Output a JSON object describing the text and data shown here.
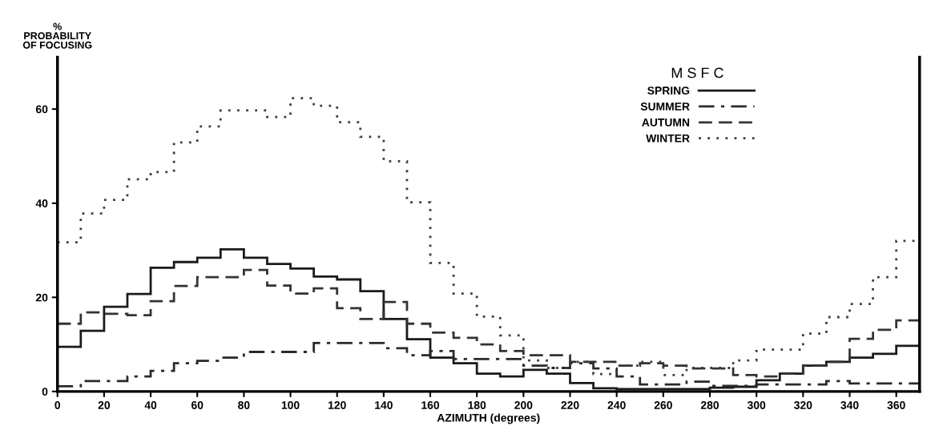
{
  "chart_data": {
    "type": "histogram",
    "xlabel": "AZIMUTH (degrees)",
    "ylabel": "%\nPROBABILITY\nOF FOCUSING",
    "legend_title": "M S F C",
    "legend": "top right",
    "grid": false,
    "bins": [
      0,
      10,
      20,
      30,
      40,
      50,
      60,
      70,
      80,
      90,
      100,
      110,
      120,
      130,
      140,
      150,
      160,
      170,
      180,
      190,
      200,
      210,
      220,
      230,
      240,
      250,
      260,
      270,
      280,
      290,
      300,
      310,
      320,
      330,
      340,
      350,
      360,
      370
    ],
    "xlim": [
      0,
      370
    ],
    "xticks": [
      0,
      20,
      40,
      60,
      80,
      100,
      120,
      140,
      160,
      180,
      200,
      220,
      240,
      260,
      280,
      300,
      320,
      340,
      360
    ],
    "ylim": [
      0,
      71
    ],
    "yticks": [
      0,
      20,
      40,
      60
    ],
    "series": [
      {
        "name": "SPRING",
        "color": "#1a1a1a",
        "line_style": "solid",
        "values": [
          9.5,
          12.9,
          18.0,
          20.7,
          26.3,
          27.5,
          28.4,
          30.2,
          28.4,
          27.1,
          26.1,
          24.4,
          23.8,
          21.3,
          15.4,
          11.1,
          7.2,
          6.0,
          3.8,
          3.2,
          4.6,
          3.8,
          1.8,
          0.7,
          0.5,
          0.5,
          0.5,
          0.5,
          0.8,
          1.0,
          2.4,
          3.8,
          5.5,
          6.3,
          7.2,
          8.0,
          9.7
        ]
      },
      {
        "name": "SUMMER",
        "color": "#2a2a2a",
        "line_style": "dashdot",
        "values": [
          1.1,
          2.2,
          2.2,
          3.2,
          4.4,
          6.0,
          6.5,
          7.2,
          8.4,
          8.4,
          8.4,
          10.3,
          10.3,
          10.3,
          9.2,
          7.7,
          8.6,
          6.9,
          6.9,
          6.9,
          5.5,
          5.0,
          6.0,
          4.9,
          3.2,
          1.5,
          1.5,
          2.1,
          1.2,
          1.2,
          1.5,
          1.5,
          1.5,
          2.2,
          1.7,
          1.7,
          1.7
        ]
      },
      {
        "name": "AUTUMN",
        "color": "#333333",
        "line_style": "dashed",
        "values": [
          14.4,
          16.8,
          16.5,
          16.2,
          19.2,
          22.4,
          24.3,
          24.3,
          25.8,
          22.5,
          20.8,
          21.9,
          17.7,
          15.4,
          19.0,
          14.4,
          12.5,
          11.4,
          10.0,
          8.6,
          7.7,
          7.7,
          6.3,
          6.3,
          5.5,
          6.0,
          5.5,
          4.9,
          4.9,
          3.5,
          3.2,
          3.8,
          5.5,
          6.3,
          11.2,
          13.1,
          15.1
        ]
      },
      {
        "name": "WINTER",
        "color": "#3c3c3c",
        "line_style": "dotted",
        "values": [
          31.7,
          37.8,
          40.7,
          45.1,
          46.6,
          52.9,
          56.3,
          59.7,
          59.7,
          58.3,
          62.3,
          60.7,
          57.2,
          54.1,
          48.9,
          40.2,
          27.3,
          20.8,
          15.9,
          11.9,
          6.6,
          5.0,
          6.3,
          3.7,
          5.5,
          6.3,
          3.5,
          5.0,
          5.0,
          6.6,
          8.9,
          8.9,
          12.3,
          15.8,
          18.6,
          24.3,
          32.0
        ]
      }
    ]
  }
}
